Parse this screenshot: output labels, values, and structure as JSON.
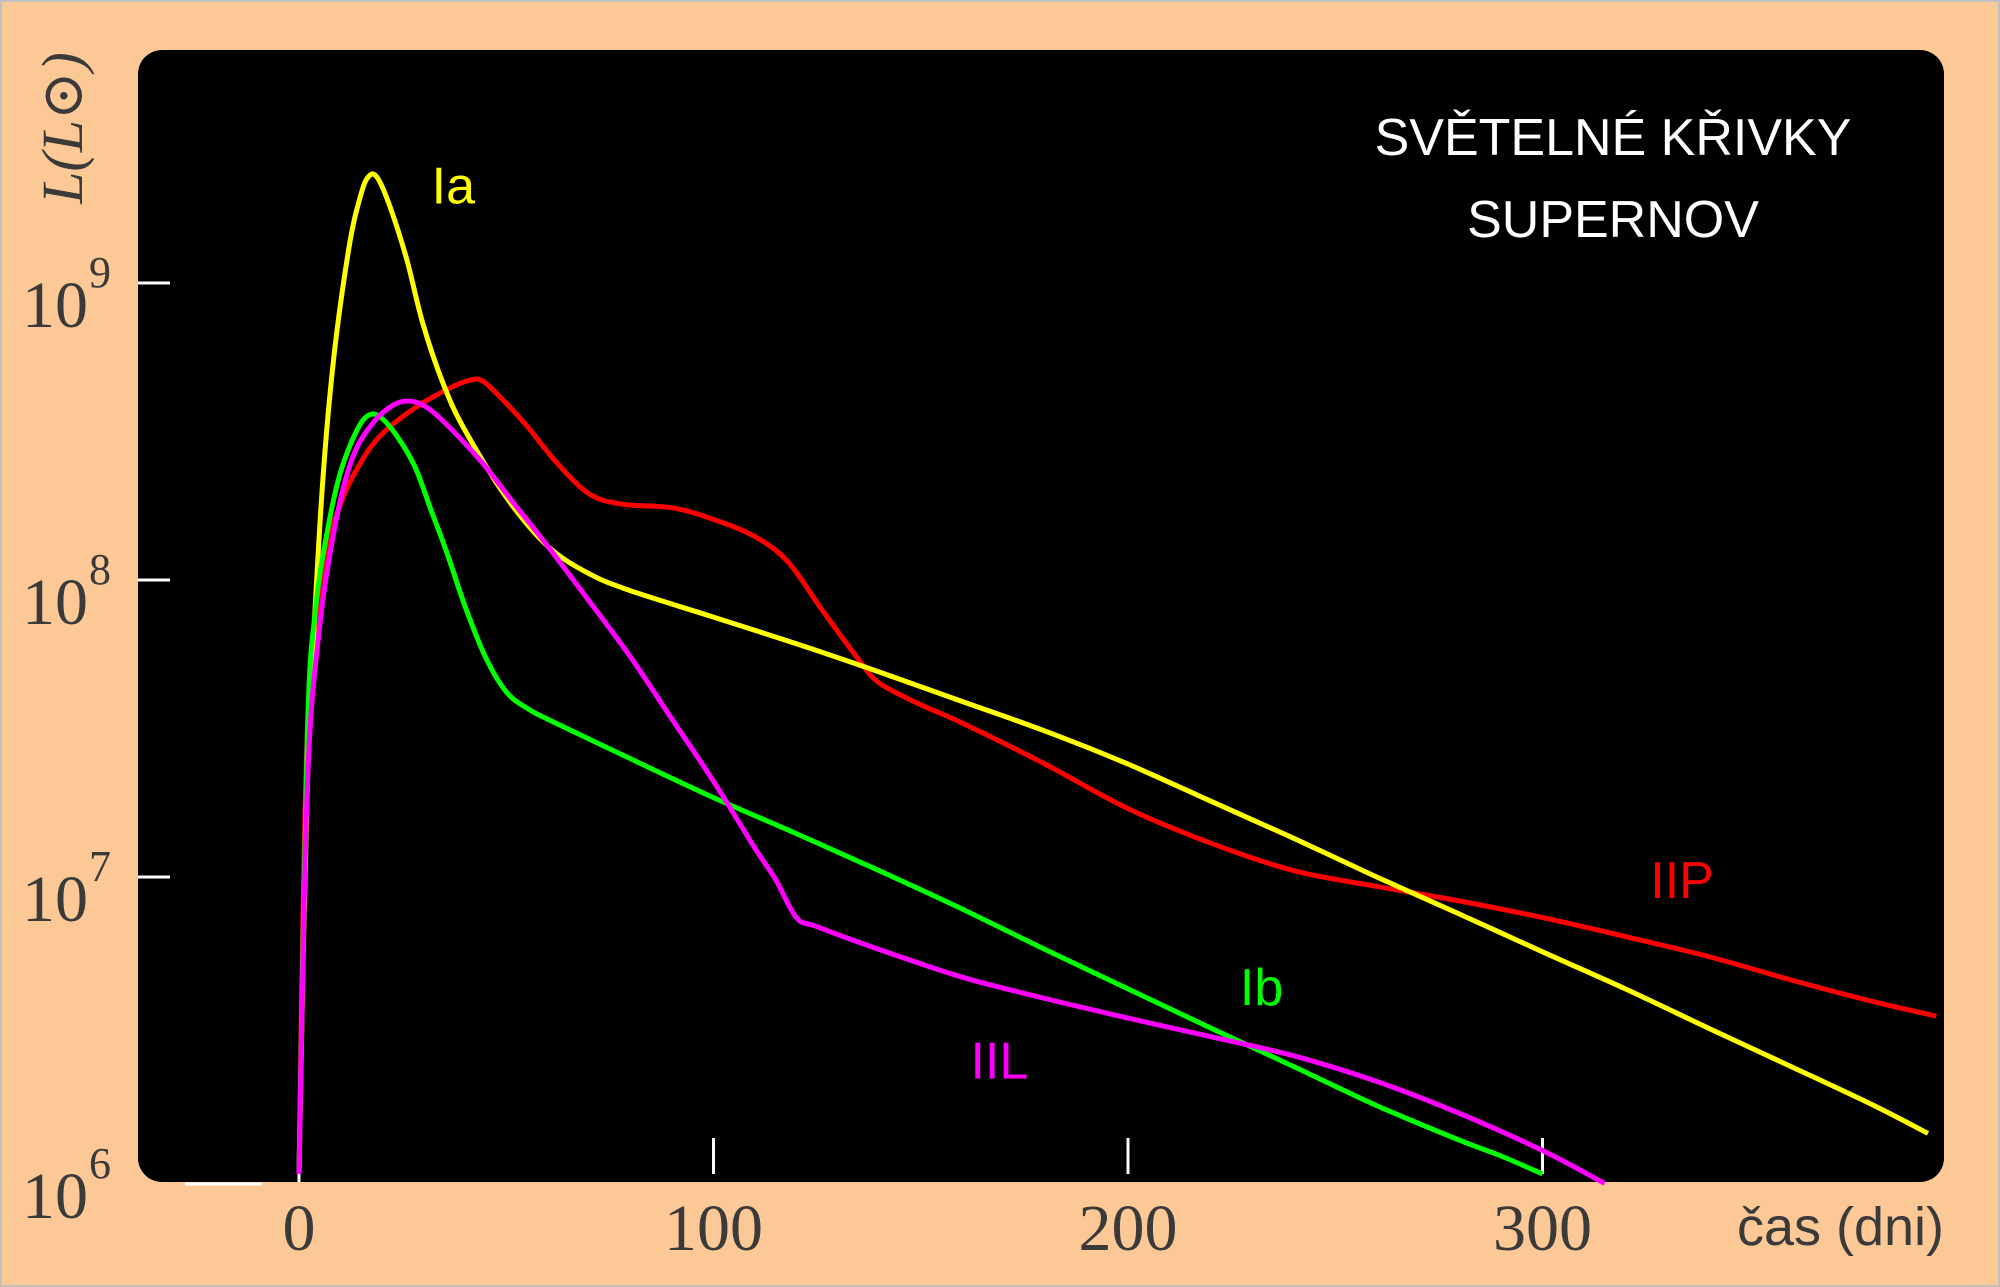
{
  "chart_data": {
    "type": "line",
    "title_lines": [
      "SVĚTELNÉ KŘIVKY",
      "SUPERNOV"
    ],
    "ylabel": "L(L⊙)",
    "xlabel": "čas (dni)",
    "xlim": [
      -30,
      395
    ],
    "x_ticks": [
      0,
      100,
      200,
      300
    ],
    "x_tick_labels": [
      "0",
      "100",
      "200",
      "300"
    ],
    "y_scale": "log",
    "ylim": [
      1000000,
      5000000000
    ],
    "y_ticks": [
      1000000,
      10000000,
      100000000,
      1000000000
    ],
    "y_tick_labels": [
      {
        "base": "10",
        "exp": "6"
      },
      {
        "base": "10",
        "exp": "7"
      },
      {
        "base": "10",
        "exp": "8"
      },
      {
        "base": "10",
        "exp": "9"
      }
    ],
    "grid": false,
    "background": "#000000",
    "frame_color": "#fcc896",
    "series": [
      {
        "name": "Ia",
        "color": "#ffff00",
        "points": [
          [
            0,
            1000000
          ],
          [
            2,
            20000000
          ],
          [
            5,
            150000000
          ],
          [
            8,
            500000000
          ],
          [
            12,
            1300000000
          ],
          [
            15,
            2000000000
          ],
          [
            17,
            2300000000
          ],
          [
            19,
            2250000000
          ],
          [
            22,
            1800000000
          ],
          [
            26,
            1200000000
          ],
          [
            30,
            720000000
          ],
          [
            35,
            450000000
          ],
          [
            40,
            320000000
          ],
          [
            50,
            190000000
          ],
          [
            60,
            130000000
          ],
          [
            70,
            105000000
          ],
          [
            80,
            92000000
          ],
          [
            100,
            75000000
          ],
          [
            120,
            61000000
          ],
          [
            140,
            49000000
          ],
          [
            160,
            39000000
          ],
          [
            180,
            31000000
          ],
          [
            200,
            24000000
          ],
          [
            220,
            18000000
          ],
          [
            240,
            13500000
          ],
          [
            260,
            10000000
          ],
          [
            280,
            7500000
          ],
          [
            300,
            5600000
          ],
          [
            320,
            4200000
          ],
          [
            340,
            3100000
          ],
          [
            360,
            2300000
          ],
          [
            380,
            1700000
          ],
          [
            393,
            1370000
          ]
        ]
      },
      {
        "name": "Ib",
        "color": "#00ff00",
        "points": [
          [
            0,
            1000000
          ],
          [
            2,
            30000000
          ],
          [
            4,
            80000000
          ],
          [
            7,
            150000000
          ],
          [
            10,
            230000000
          ],
          [
            14,
            320000000
          ],
          [
            17,
            360000000
          ],
          [
            20,
            350000000
          ],
          [
            24,
            300000000
          ],
          [
            28,
            240000000
          ],
          [
            32,
            170000000
          ],
          [
            36,
            120000000
          ],
          [
            40,
            82000000
          ],
          [
            45,
            55000000
          ],
          [
            50,
            42000000
          ],
          [
            55,
            37000000
          ],
          [
            60,
            34000000
          ],
          [
            80,
            25000000
          ],
          [
            100,
            18500000
          ],
          [
            120,
            14000000
          ],
          [
            140,
            10500000
          ],
          [
            160,
            7800000
          ],
          [
            180,
            5700000
          ],
          [
            200,
            4200000
          ],
          [
            220,
            3100000
          ],
          [
            240,
            2300000
          ],
          [
            260,
            1700000
          ],
          [
            280,
            1300000
          ],
          [
            290,
            1150000
          ],
          [
            300,
            1000000
          ]
        ]
      },
      {
        "name": "IIL",
        "color": "#ff00ff",
        "points": [
          [
            0,
            1000000
          ],
          [
            2,
            20000000
          ],
          [
            5,
            70000000
          ],
          [
            9,
            160000000
          ],
          [
            13,
            260000000
          ],
          [
            18,
            340000000
          ],
          [
            23,
            390000000
          ],
          [
            27,
            400000000
          ],
          [
            31,
            380000000
          ],
          [
            36,
            330000000
          ],
          [
            44,
            250000000
          ],
          [
            52,
            180000000
          ],
          [
            60,
            130000000
          ],
          [
            70,
            85000000
          ],
          [
            80,
            55000000
          ],
          [
            90,
            34000000
          ],
          [
            100,
            21000000
          ],
          [
            110,
            12500000
          ],
          [
            115,
            9800000
          ],
          [
            120,
            7300000
          ],
          [
            125,
            6800000
          ],
          [
            140,
            5700000
          ],
          [
            160,
            4600000
          ],
          [
            180,
            3900000
          ],
          [
            200,
            3350000
          ],
          [
            220,
            2900000
          ],
          [
            240,
            2500000
          ],
          [
            260,
            2050000
          ],
          [
            280,
            1600000
          ],
          [
            300,
            1200000
          ],
          [
            315,
            930000
          ]
        ]
      },
      {
        "name": "IIP",
        "color": "#ff0000",
        "points": [
          [
            0,
            1000000
          ],
          [
            2,
            30000000
          ],
          [
            6,
            110000000
          ],
          [
            10,
            180000000
          ],
          [
            15,
            250000000
          ],
          [
            20,
            310000000
          ],
          [
            28,
            380000000
          ],
          [
            36,
            440000000
          ],
          [
            41,
            470000000
          ],
          [
            44,
            470000000
          ],
          [
            48,
            420000000
          ],
          [
            55,
            330000000
          ],
          [
            62,
            250000000
          ],
          [
            70,
            195000000
          ],
          [
            78,
            180000000
          ],
          [
            90,
            175000000
          ],
          [
            100,
            160000000
          ],
          [
            110,
            140000000
          ],
          [
            118,
            115000000
          ],
          [
            126,
            80000000
          ],
          [
            135,
            54000000
          ],
          [
            140,
            45000000
          ],
          [
            150,
            38000000
          ],
          [
            160,
            33000000
          ],
          [
            180,
            24000000
          ],
          [
            200,
            17000000
          ],
          [
            220,
            13000000
          ],
          [
            240,
            10500000
          ],
          [
            260,
            9300000
          ],
          [
            280,
            8300000
          ],
          [
            300,
            7300000
          ],
          [
            320,
            6300000
          ],
          [
            340,
            5400000
          ],
          [
            360,
            4500000
          ],
          [
            380,
            3800000
          ],
          [
            395,
            3400000
          ]
        ]
      }
    ],
    "annotations": [
      {
        "text": "Ia",
        "series": "Ia",
        "x": 32,
        "y": 1850000000
      },
      {
        "text": "IIP",
        "series": "IIP",
        "x": 326,
        "y": 8500000
      },
      {
        "text": "Ib",
        "series": "Ib",
        "x": 227,
        "y": 3700000
      },
      {
        "text": "IIL",
        "series": "IIL",
        "x": 162,
        "y": 2100000
      }
    ]
  }
}
